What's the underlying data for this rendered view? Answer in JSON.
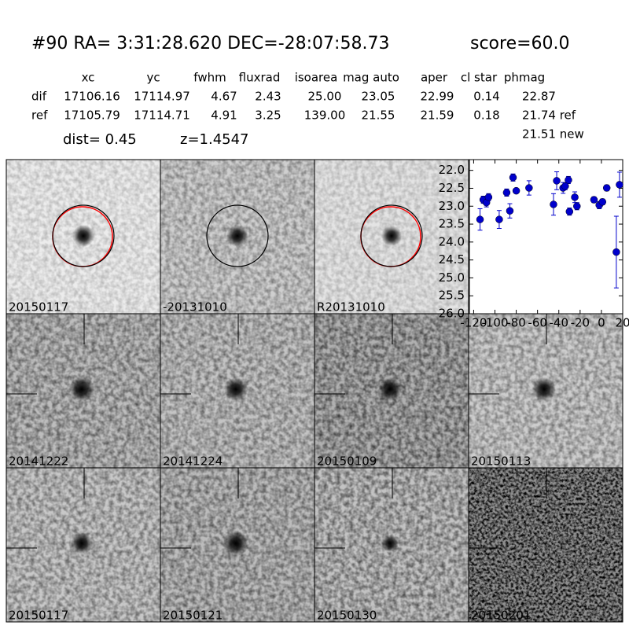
{
  "header": {
    "title": "#90   RA= 3:31:28.620 DEC=-28:07:58.73",
    "score": "score=60.0"
  },
  "table": {
    "columns": [
      "xc",
      "yc",
      "fwhm",
      "fluxrad",
      "isoarea",
      "mag auto",
      "aper",
      "cl star",
      "phmag"
    ],
    "rows": [
      [
        "dif",
        "17106.16",
        "17114.97",
        "4.67",
        "2.43",
        "25.00",
        "23.05",
        "22.99",
        "0.14",
        "22.87"
      ],
      [
        "ref",
        "17105.79",
        "17114.71",
        "4.91",
        "3.25",
        "139.00",
        "21.55",
        "21.59",
        "0.18",
        "21.74 ref"
      ]
    ],
    "extra": "21.51 new"
  },
  "info": {
    "dist": "dist=  0.45",
    "z": "z=1.4547"
  },
  "panels": [
    {
      "label": "20150117"
    },
    {
      "label": "-20131010"
    },
    {
      "label": "R20131010"
    },
    {
      "label": "20141222"
    },
    {
      "label": "20141224"
    },
    {
      "label": "20150109"
    },
    {
      "label": "20150113"
    },
    {
      "label": "20150117",
      "color": "#ff0000"
    },
    {
      "label": "20150121"
    },
    {
      "label": "20150130"
    },
    {
      "label": "20150201"
    }
  ],
  "chart_data": {
    "type": "errorbar",
    "color": "#0000cc",
    "x": [
      -114,
      -111,
      -108,
      -106,
      -96,
      -89,
      -86,
      -83,
      -80,
      -68,
      -45,
      -42,
      -36,
      -34,
      -31,
      -30,
      -25,
      -23,
      -7,
      -2,
      1,
      5,
      14,
      17
    ],
    "values": [
      23.37,
      22.82,
      22.9,
      22.75,
      23.37,
      22.62,
      23.13,
      22.2,
      22.57,
      22.49,
      22.95,
      22.29,
      22.49,
      22.44,
      22.27,
      23.15,
      22.75,
      23.0,
      22.82,
      22.97,
      22.88,
      22.49,
      24.28,
      22.4
    ],
    "errors": [
      0.3,
      0.1,
      0.12,
      0.1,
      0.25,
      0.1,
      0.2,
      0.1,
      0.05,
      0.2,
      0.3,
      0.25,
      0.15,
      0.1,
      0.1,
      0.1,
      0.15,
      0.1,
      0.08,
      0.1,
      0.08,
      0.08,
      1.0,
      0.35
    ],
    "xlim": [
      -124,
      20
    ],
    "ylim": [
      21.7,
      26
    ],
    "y_inverted": true,
    "xticks": [
      -120,
      -100,
      -80,
      -60,
      -40,
      -20,
      0,
      20
    ],
    "yticks": [
      {
        "value": 22,
        "label": "22.0"
      },
      {
        "value": 22.5,
        "label": "22.5"
      },
      {
        "value": 23,
        "label": "23.0"
      },
      {
        "value": 23.5,
        "label": "23.5"
      },
      {
        "value": 24,
        "label": "24.0"
      },
      {
        "value": 24.5,
        "label": "24.5"
      },
      {
        "value": 25,
        "label": "25.0"
      },
      {
        "value": 25.5,
        "label": "25.5"
      },
      {
        "value": 26,
        "label": "26.0"
      }
    ]
  }
}
